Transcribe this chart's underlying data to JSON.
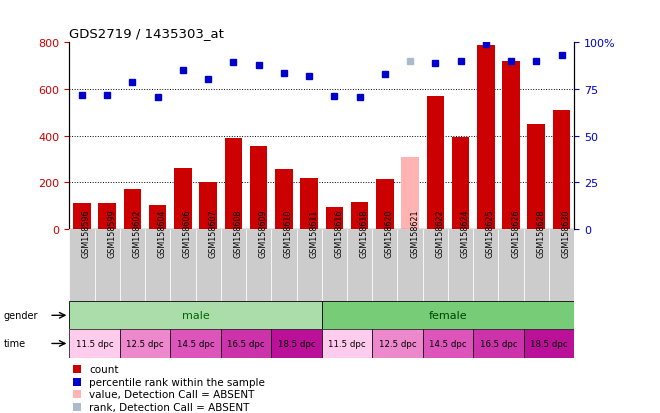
{
  "title": "GDS2719 / 1435303_at",
  "samples": [
    "GSM158596",
    "GSM158599",
    "GSM158602",
    "GSM158604",
    "GSM158606",
    "GSM158607",
    "GSM158608",
    "GSM158609",
    "GSM158610",
    "GSM158611",
    "GSM158616",
    "GSM158618",
    "GSM158620",
    "GSM158621",
    "GSM158622",
    "GSM158624",
    "GSM158625",
    "GSM158626",
    "GSM158628",
    "GSM158630"
  ],
  "bar_values": [
    110,
    110,
    170,
    100,
    260,
    200,
    390,
    355,
    255,
    220,
    95,
    115,
    215,
    310,
    570,
    395,
    790,
    720,
    450,
    510
  ],
  "bar_absent": [
    false,
    false,
    false,
    false,
    false,
    false,
    false,
    false,
    false,
    false,
    false,
    false,
    false,
    true,
    false,
    false,
    false,
    false,
    false,
    false
  ],
  "dot_values": [
    575,
    575,
    630,
    565,
    680,
    645,
    715,
    705,
    670,
    655,
    570,
    565,
    665,
    720,
    710,
    720,
    795,
    720,
    720,
    745
  ],
  "dot_absent": [
    false,
    false,
    false,
    false,
    false,
    false,
    false,
    false,
    false,
    false,
    false,
    false,
    false,
    true,
    false,
    false,
    false,
    false,
    false,
    false
  ],
  "bar_color": "#cc0000",
  "bar_absent_color": "#ffb3b3",
  "dot_color": "#0000cc",
  "dot_absent_color": "#aabbcc",
  "male_color": "#aaeebb",
  "female_color": "#88dd88",
  "time_colors_male": [
    "#ffddee",
    "#ee99cc",
    "#dd66bb",
    "#cc44aa",
    "#bb2299"
  ],
  "time_colors_female": [
    "#ffddee",
    "#ee99cc",
    "#dd66bb",
    "#cc44aa",
    "#bb2299"
  ],
  "ylim_left": [
    0,
    800
  ],
  "ylim_right": [
    0,
    100
  ],
  "yticks_left": [
    0,
    200,
    400,
    600,
    800
  ],
  "yticks_right": [
    0,
    25,
    50,
    75,
    100
  ],
  "background_color": "#ffffff",
  "xlabel_bg": "#cccccc"
}
